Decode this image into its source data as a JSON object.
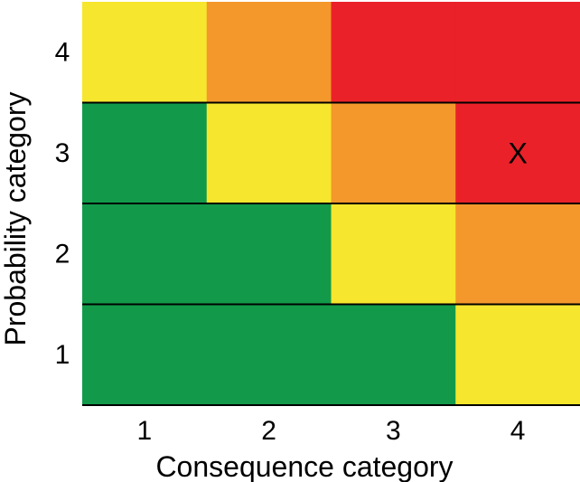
{
  "chart_data": {
    "type": "heatmap",
    "title": "",
    "xlabel": "Consequence category",
    "ylabel": "Probability category",
    "x_categories": [
      "1",
      "2",
      "3",
      "4"
    ],
    "y_categories": [
      "1",
      "2",
      "3",
      "4"
    ],
    "levels": {
      "green": "#129a4a",
      "yellow": "#f6e62d",
      "orange": "#f4982b",
      "red": "#ea2129"
    },
    "rows": [
      {
        "probability": "4",
        "cells": [
          "yellow",
          "orange",
          "red",
          "red"
        ]
      },
      {
        "probability": "3",
        "cells": [
          "green",
          "yellow",
          "orange",
          "red"
        ]
      },
      {
        "probability": "2",
        "cells": [
          "green",
          "green",
          "yellow",
          "orange"
        ]
      },
      {
        "probability": "1",
        "cells": [
          "green",
          "green",
          "green",
          "yellow"
        ]
      }
    ],
    "marker": {
      "label": "X",
      "consequence": "4",
      "probability": "3"
    },
    "grid": false,
    "legend": "none"
  }
}
